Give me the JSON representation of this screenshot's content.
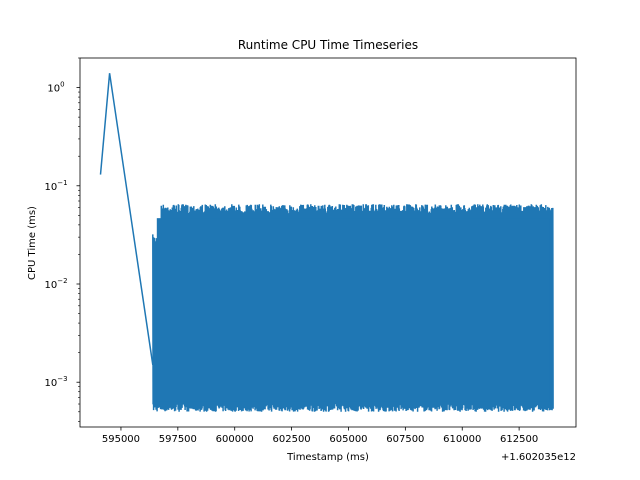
{
  "chart_data": {
    "type": "line",
    "title": "Runtime CPU Time Timeseries",
    "xlabel": "Timestamp (ms)",
    "ylabel": "CPU Time (ms)",
    "x_offset_label": "+1.602035e12",
    "yscale": "log",
    "xlim": [
      593200,
      615000
    ],
    "ylim": [
      0.00035,
      2.0
    ],
    "grid": false,
    "x_ticks": [
      {
        "value": 595000,
        "label": "595000"
      },
      {
        "value": 597500,
        "label": "597500"
      },
      {
        "value": 600000,
        "label": "600000"
      },
      {
        "value": 602500,
        "label": "602500"
      },
      {
        "value": 605000,
        "label": "605000"
      },
      {
        "value": 607500,
        "label": "607500"
      },
      {
        "value": 610000,
        "label": "610000"
      },
      {
        "value": 612500,
        "label": "612500"
      }
    ],
    "y_ticks": [
      {
        "value": 0.001,
        "base": "10",
        "exp": "−3"
      },
      {
        "value": 0.01,
        "base": "10",
        "exp": "−2"
      },
      {
        "value": 0.1,
        "base": "10",
        "exp": "−1"
      },
      {
        "value": 1,
        "base": "10",
        "exp": "0"
      }
    ],
    "series": [
      {
        "color": "#1f77b4",
        "initial_points": [
          [
            594100,
            0.13
          ],
          [
            594500,
            1.4
          ],
          [
            596400,
            0.0015
          ]
        ],
        "dense_segment": {
          "x_start": 596400,
          "x_end": 614000,
          "y_low": 0.0005,
          "y_high": 0.065,
          "start_band_high": 0.032
        }
      }
    ]
  }
}
